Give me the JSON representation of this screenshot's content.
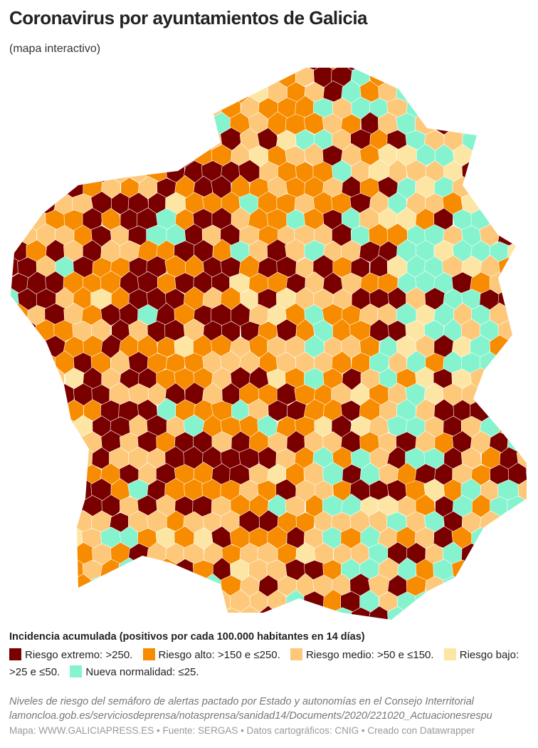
{
  "title": "Coronavirus por ayuntamientos de Galicia",
  "subtitle": "(mapa interactivo)",
  "legend": {
    "title": "Incidencia acumulada (positivos por cada 100.000 habitantes en 14 días)",
    "items": [
      {
        "label": "Riesgo extremo: >250.",
        "color": "#7a0000"
      },
      {
        "label": "Riesgo alto: >150 e ≤250.",
        "color": "#f78c00"
      },
      {
        "label": "Riesgo medio: >50 e ≤150.",
        "color": "#fec87a"
      },
      {
        "label": "Riesgo bajo: >25 e ≤50.",
        "color": "#fde6a3"
      },
      {
        "label": "Nueva normalidad: ≤25.",
        "color": "#86f3cf"
      }
    ]
  },
  "notes": [
    "Niveles de riesgo del semáforo de alertas pactado por Estado y autonomías en el Consejo Interritorial",
    "lamoncloa.gob.es/serviciosdeprensa/notasprensa/sanidad14/Documents/2020/221020_Actuacionesrespu"
  ],
  "footer": "Mapa: WWW.GALICIAPRESS.ES • Fuente: SERGAS • Datos cartográficos: CNIG • Creado con Datawrapper"
}
